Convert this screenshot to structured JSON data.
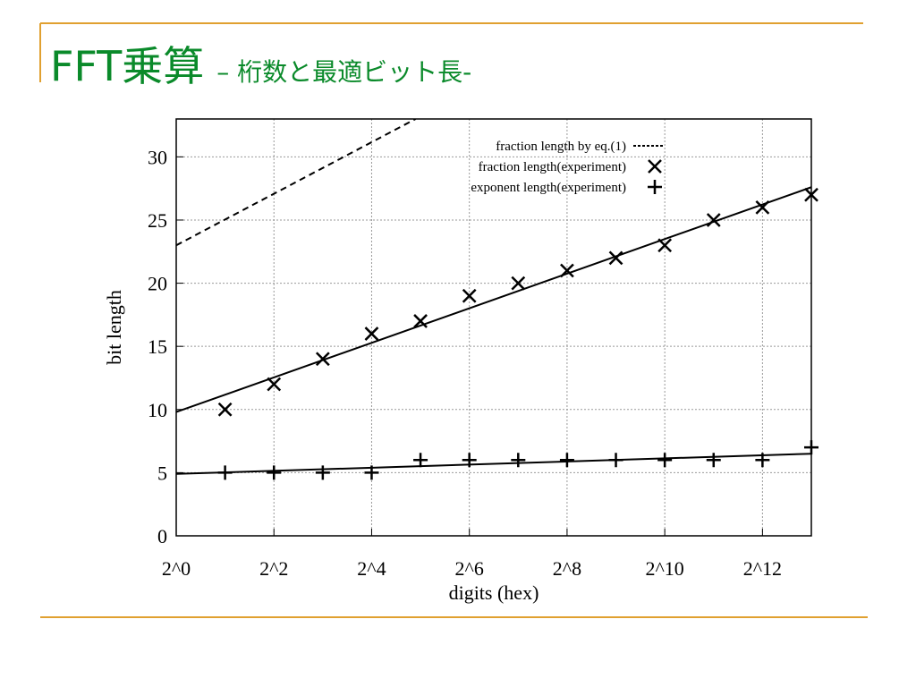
{
  "slide": {
    "title": "FFT乗算",
    "subtitle": "– 桁数と最適ビット長-"
  },
  "chart_data": {
    "type": "line",
    "xlabel": "digits (hex)",
    "ylabel": "bit length",
    "xlim": [
      0,
      13
    ],
    "xticks": [
      {
        "value": 0,
        "label": "2^0"
      },
      {
        "value": 2,
        "label": "2^2"
      },
      {
        "value": 4,
        "label": "2^4"
      },
      {
        "value": 6,
        "label": "2^6"
      },
      {
        "value": 8,
        "label": "2^8"
      },
      {
        "value": 10,
        "label": "2^10"
      },
      {
        "value": 12,
        "label": "2^12"
      }
    ],
    "ylim": [
      0,
      33
    ],
    "yticks": [
      0,
      5,
      10,
      15,
      20,
      25,
      30
    ],
    "grid": true,
    "legend": "upper right",
    "series": [
      {
        "name": "fraction length by eq.(1)",
        "style": "dashed",
        "color": "#000000",
        "x": [
          0,
          4.9
        ],
        "values": [
          23,
          33
        ]
      },
      {
        "name": "fraction length(experiment)",
        "style": "cross",
        "color": "#000000",
        "x": [
          1,
          2,
          3,
          4,
          5,
          6,
          7,
          8,
          9,
          10,
          11,
          12,
          13
        ],
        "values": [
          10,
          12,
          14,
          16,
          17,
          19,
          20,
          21,
          22,
          23,
          25,
          26,
          27
        ]
      },
      {
        "name": "exponent length(experiment)",
        "style": "plus",
        "color": "#000000",
        "x": [
          1,
          2,
          3,
          4,
          5,
          6,
          7,
          8,
          9,
          10,
          11,
          12,
          13
        ],
        "values": [
          5,
          5,
          5,
          5,
          6,
          6,
          6,
          6,
          6,
          6,
          6,
          6,
          7
        ]
      },
      {
        "style": "solid",
        "color": "#000000",
        "x": [
          0,
          13
        ],
        "values": [
          9.8,
          27.6
        ]
      },
      {
        "style": "solid",
        "color": "#000000",
        "x": [
          0,
          13
        ],
        "values": [
          4.9,
          6.5
        ]
      }
    ]
  }
}
